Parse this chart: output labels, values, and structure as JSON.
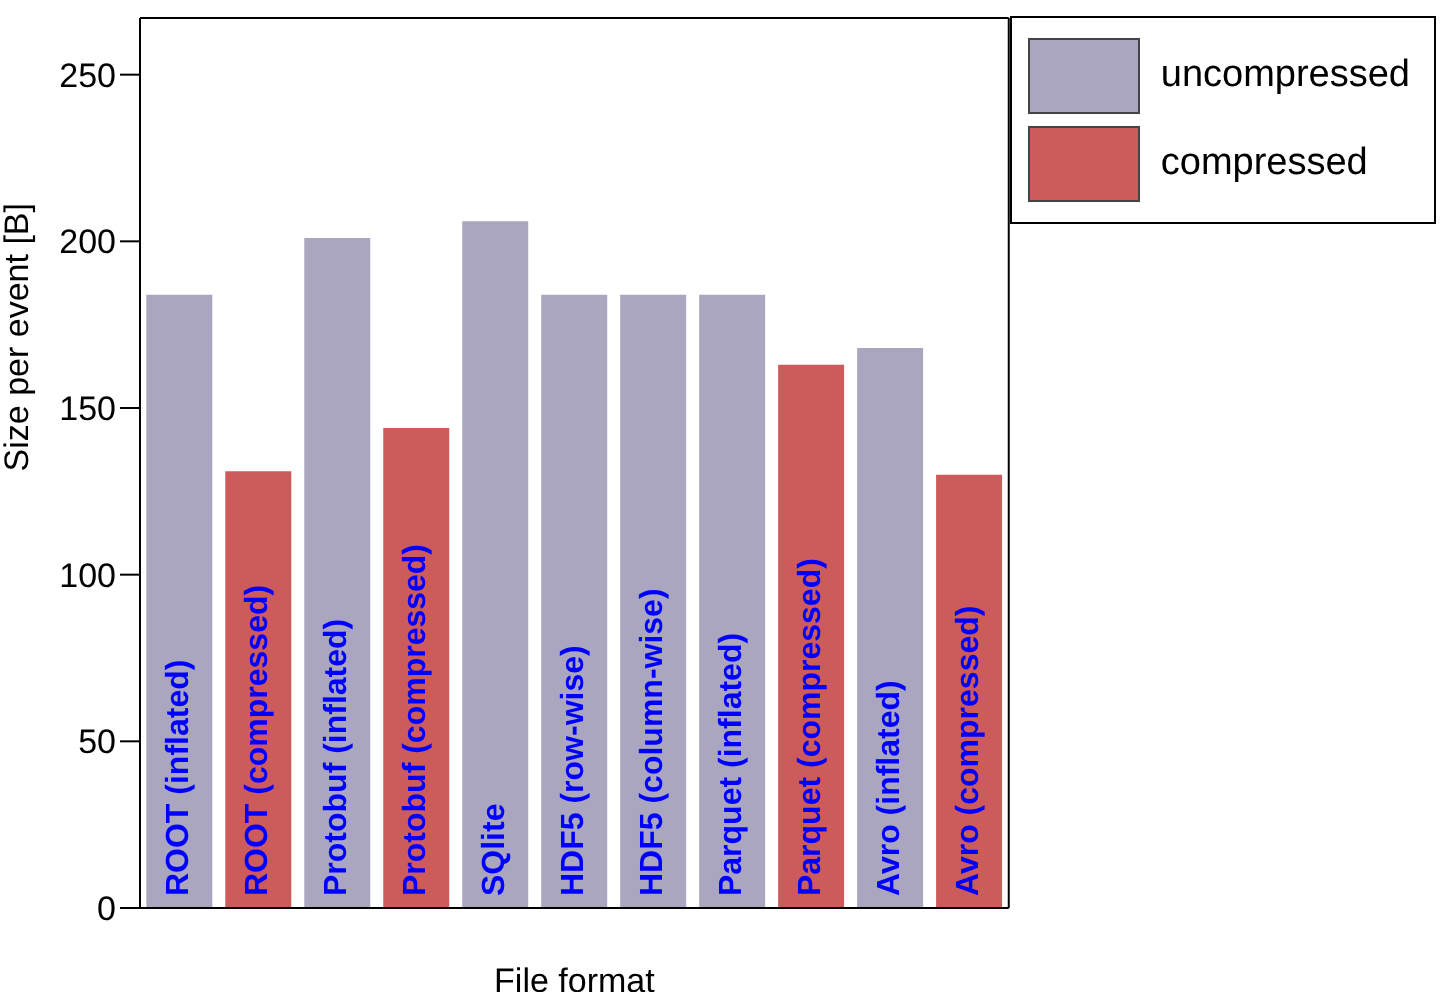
{
  "chart_data": {
    "type": "bar",
    "xlabel": "File format",
    "ylabel": "Size per event [B]",
    "categories": [
      "ROOT (inflated)",
      "ROOT (compressed)",
      "Protobuf (inflated)",
      "Protobuf (compressed)",
      "SQlite",
      "HDF5 (row-wise)",
      "HDF5 (column-wise)",
      "Parquet (inflated)",
      "Parquet (compressed)",
      "Avro (inflated)",
      "Avro (compressed)"
    ],
    "series": [
      {
        "name": "uncompressed",
        "color": "#aaa6c0",
        "values": [
          184,
          null,
          201,
          null,
          206,
          184,
          184,
          184,
          null,
          168,
          null
        ]
      },
      {
        "name": "compressed",
        "color": "#cd5b5c",
        "values": [
          null,
          131,
          null,
          144,
          null,
          null,
          null,
          null,
          163,
          null,
          130
        ]
      }
    ],
    "ylim": [
      0,
      267
    ],
    "yticks": [
      0,
      50,
      100,
      150,
      200,
      250
    ],
    "legend": "top right"
  }
}
